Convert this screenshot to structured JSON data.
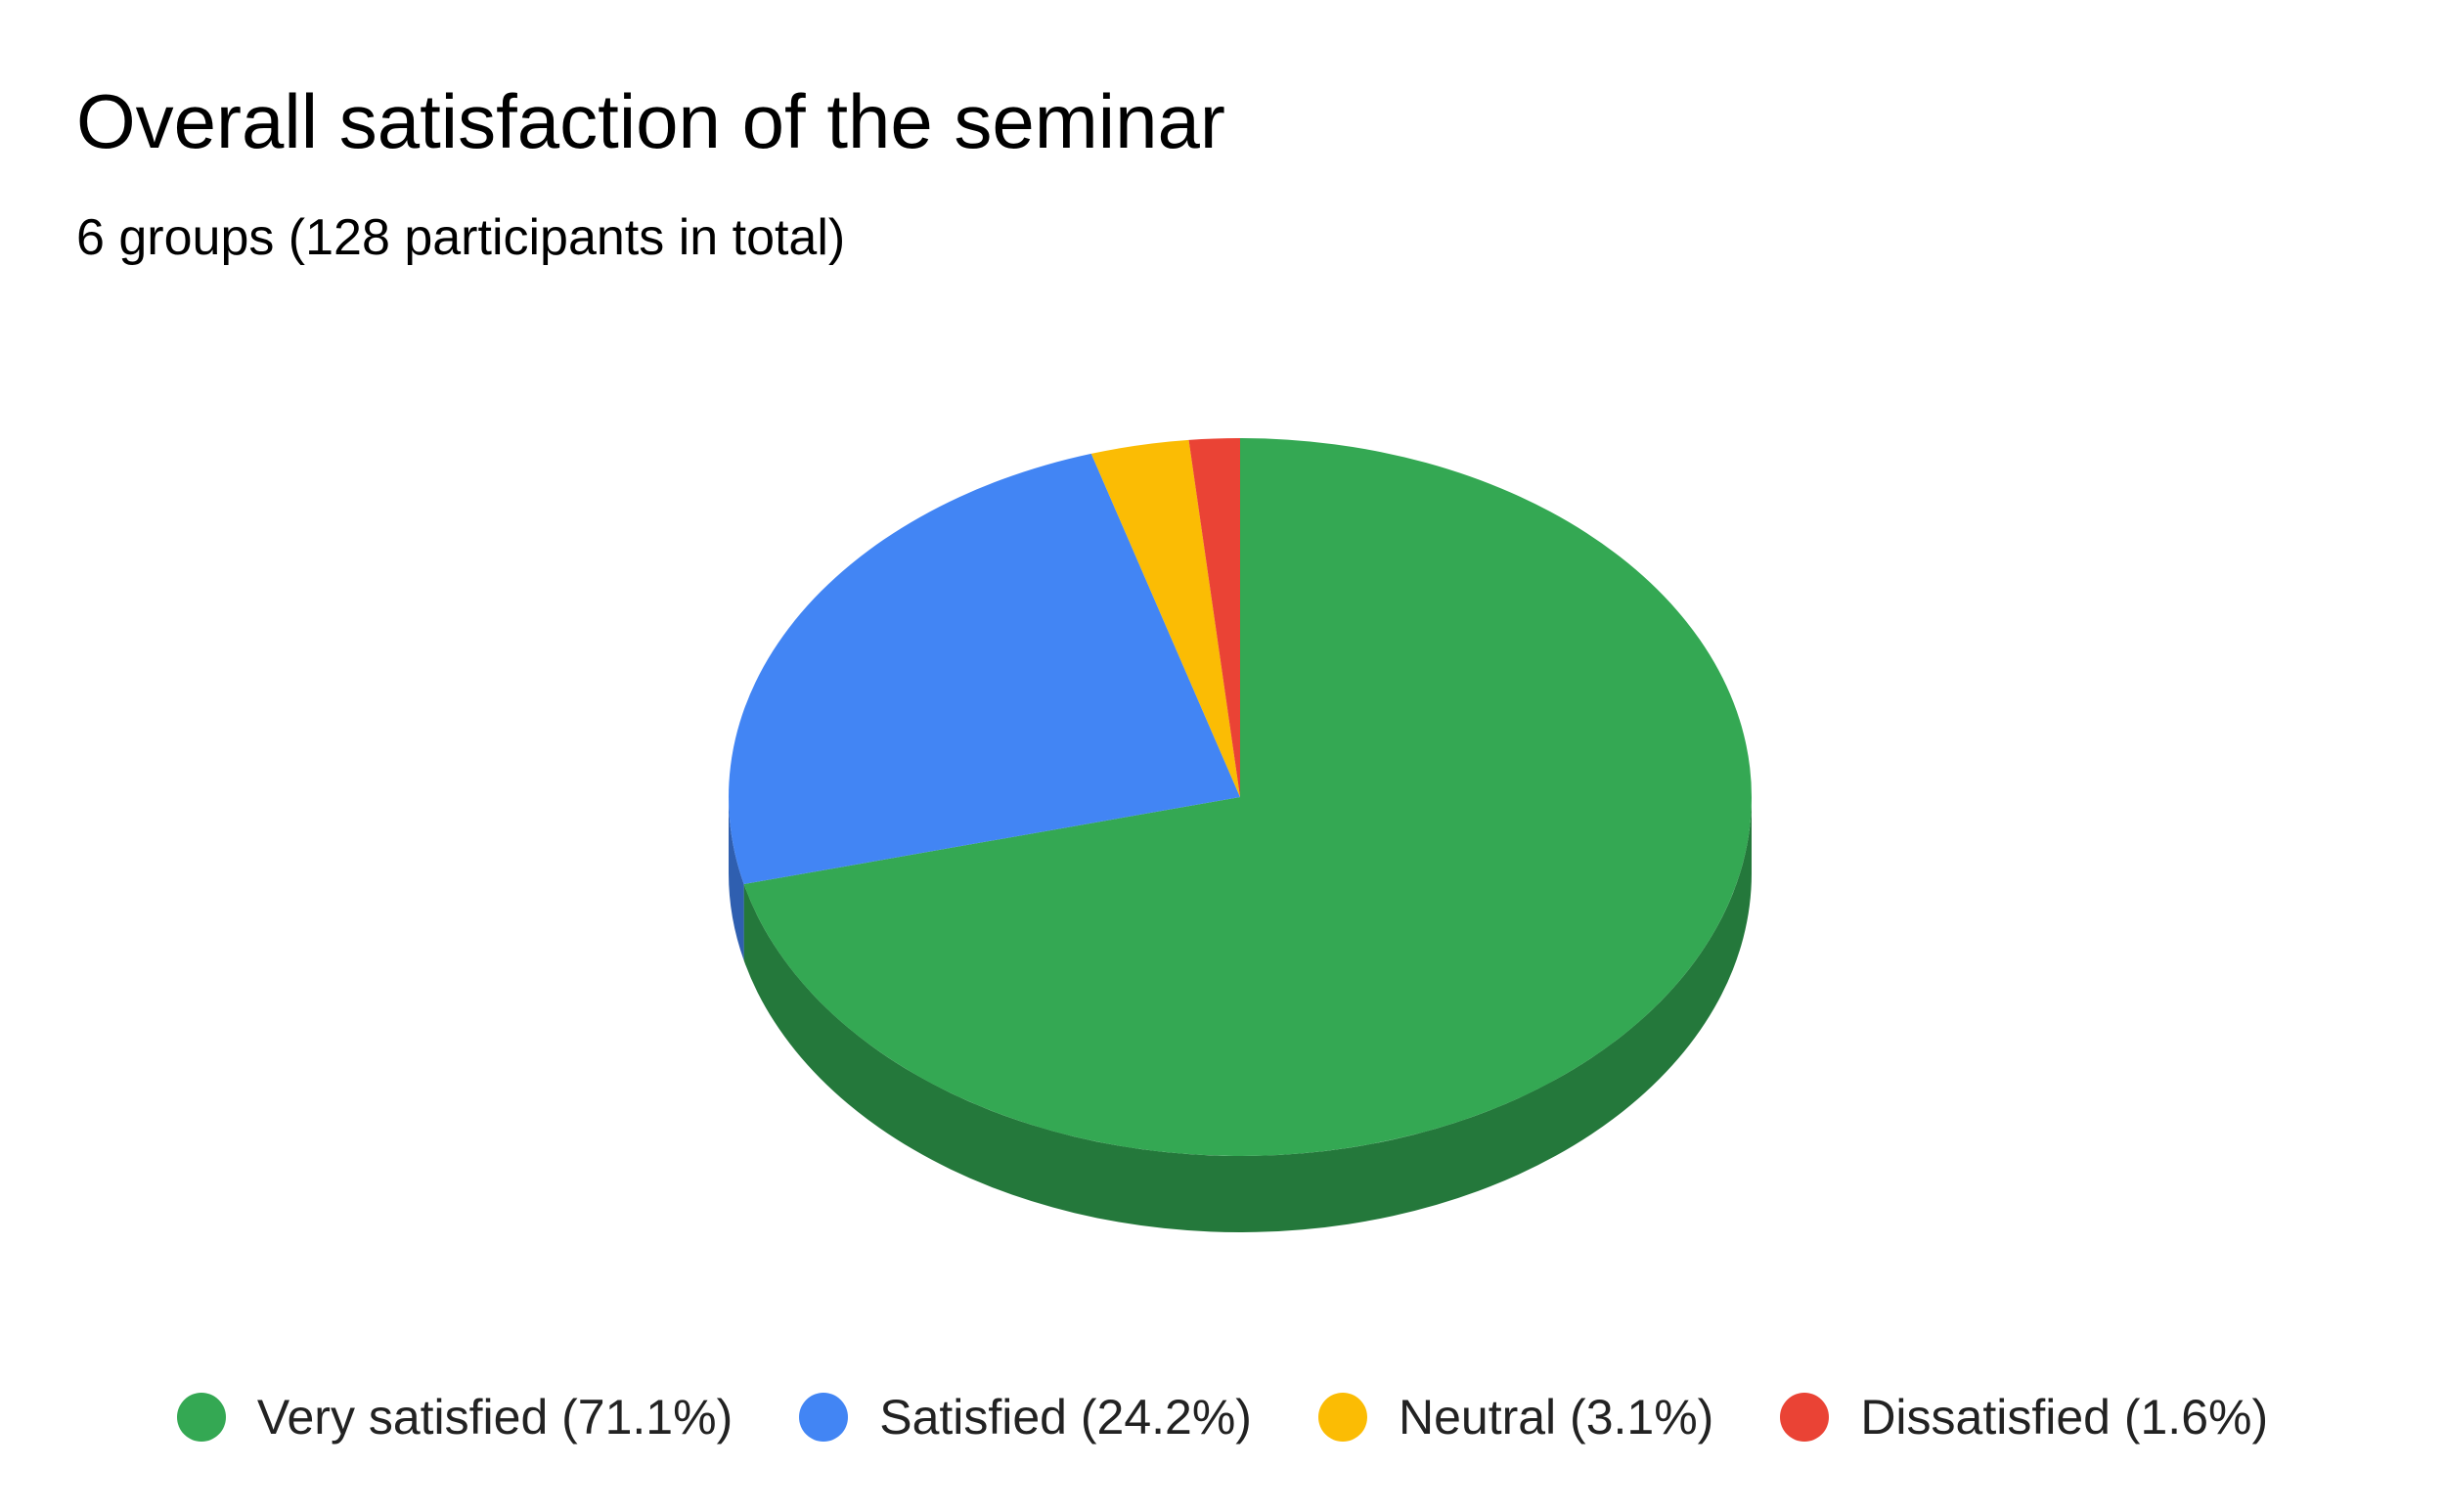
{
  "chart_data": {
    "type": "pie",
    "title": "Overall satisfaction of the seminar",
    "subtitle": "6 groups (128 participants in total)",
    "style": "3d",
    "legend_position": "bottom",
    "slices": [
      {
        "label": "Very satisfied (71.1%)",
        "value": 71.1,
        "color": "#34a853",
        "side_color": "#24783b"
      },
      {
        "label": "Satisfied (24.2%)",
        "value": 24.2,
        "color": "#4285f4",
        "side_color": "#2f5fb0"
      },
      {
        "label": "Neutral (3.1%)",
        "value": 3.1,
        "color": "#fbbc04",
        "side_color": "#b38603"
      },
      {
        "label": "Dissatisfied (1.6%)",
        "value": 1.6,
        "color": "#ea4335",
        "side_color": "#a83025"
      }
    ]
  }
}
